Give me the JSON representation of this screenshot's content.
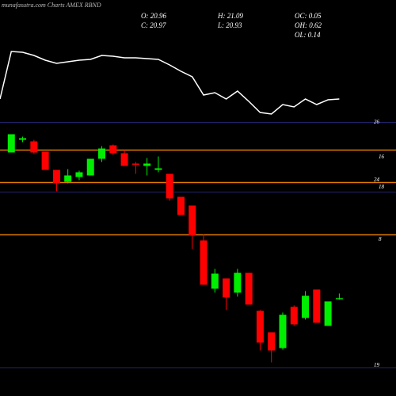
{
  "header": {
    "watermark": "munafasutra.com Charts AMEX RBND",
    "stats": [
      "O: 20.96",
      "H: 21.09",
      "OC: 0.05",
      "C: 20.97",
      "L: 20.93",
      "OH: 0.62",
      "OL: 0.14"
    ]
  },
  "chart_data": [
    {
      "type": "line",
      "color": "#ffffff",
      "ylim": [
        0,
        100
      ],
      "values": [
        25,
        85,
        84,
        80,
        74,
        70,
        72,
        74,
        75,
        80,
        79,
        77,
        77,
        76,
        75,
        68,
        60,
        53,
        30,
        33,
        25,
        35,
        22,
        8,
        6,
        18,
        15,
        25,
        18,
        24,
        25
      ]
    },
    {
      "type": "candlestick",
      "ylim": [
        19.1,
        25.5
      ],
      "up_color": "#00ee00",
      "down_color": "#ff0000",
      "open": [
        24.65,
        24.97,
        24.93,
        24.67,
        24.21,
        23.91,
        24.03,
        24.07,
        24.49,
        24.83,
        24.63,
        24.37,
        24.31,
        24.21,
        24.11,
        23.53,
        23.31,
        22.43,
        21.21,
        21.47,
        21.11,
        21.61,
        20.65,
        20.11,
        19.71,
        20.75,
        20.47,
        21.19,
        20.27,
        20.96
      ],
      "high": [
        25.11,
        25.05,
        24.97,
        24.67,
        24.21,
        24.23,
        24.19,
        24.49,
        24.81,
        24.85,
        24.71,
        24.41,
        24.51,
        24.55,
        24.11,
        23.53,
        23.31,
        22.59,
        21.71,
        21.47,
        21.71,
        21.61,
        20.67,
        20.11,
        20.61,
        20.79,
        21.15,
        21.19,
        20.89,
        21.09
      ],
      "low": [
        24.65,
        24.91,
        24.61,
        24.21,
        23.67,
        23.87,
        23.95,
        24.07,
        24.41,
        24.59,
        24.31,
        24.11,
        24.07,
        24.15,
        23.43,
        23.07,
        22.21,
        21.31,
        21.11,
        20.67,
        21.01,
        20.81,
        19.65,
        19.35,
        19.67,
        20.27,
        20.43,
        20.35,
        20.27,
        20.93
      ],
      "close": [
        25.11,
        25.01,
        24.65,
        24.21,
        23.87,
        24.07,
        24.15,
        24.49,
        24.75,
        24.63,
        24.31,
        24.35,
        24.37,
        24.25,
        23.49,
        23.07,
        22.55,
        21.31,
        21.59,
        20.99,
        21.61,
        20.81,
        19.85,
        19.65,
        20.55,
        20.31,
        21.03,
        20.35,
        20.89,
        20.97
      ],
      "levels": [
        {
          "value": 24.71,
          "color": "#e07b00"
        },
        {
          "value": 23.89,
          "color": "#e07b00"
        },
        {
          "value": 22.57,
          "color": "#e07b00"
        },
        {
          "value": 25.41,
          "color": "#22226e"
        },
        {
          "value": 23.65,
          "color": "#22226e"
        },
        {
          "value": 19.21,
          "color": "#22226e"
        }
      ],
      "right_labels": [
        "26",
        "16",
        "18",
        "24",
        "8",
        "19"
      ]
    }
  ]
}
